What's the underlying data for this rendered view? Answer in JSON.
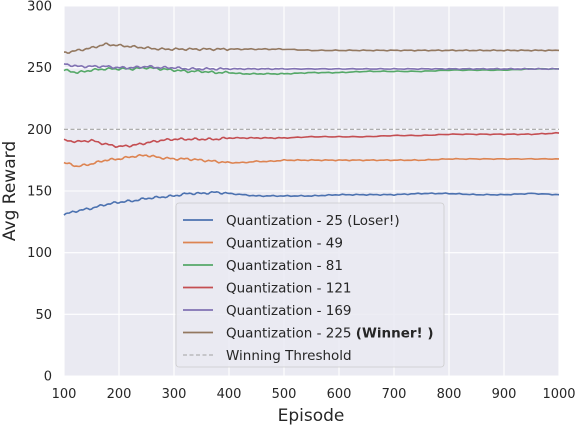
{
  "chart_data": {
    "type": "line",
    "title": "",
    "xlabel": "Episode",
    "ylabel": "Avg Reward",
    "xlim": [
      100,
      1000
    ],
    "ylim": [
      0,
      300
    ],
    "xticks": [
      "100",
      "200",
      "300",
      "400",
      "500",
      "600",
      "700",
      "800",
      "900",
      "1000"
    ],
    "yticks": [
      "0",
      "50",
      "100",
      "150",
      "200",
      "250",
      "300"
    ],
    "x": [
      100,
      125,
      150,
      175,
      200,
      225,
      250,
      275,
      300,
      325,
      350,
      375,
      400,
      425,
      450,
      475,
      500,
      550,
      600,
      650,
      700,
      750,
      800,
      850,
      900,
      950,
      1000
    ],
    "series": [
      {
        "name": "Quantization - 25",
        "note": "(Loser!)",
        "color": "#4c72b0",
        "values": [
          131,
          134,
          136,
          139,
          141,
          142,
          144,
          145,
          146,
          148,
          148,
          149,
          148,
          147,
          146,
          146,
          146,
          146,
          147,
          147,
          147,
          148,
          148,
          147,
          147,
          148,
          147
        ]
      },
      {
        "name": "Quantization - 49",
        "note": "",
        "color": "#dd8452",
        "values": [
          173,
          170,
          172,
          175,
          176,
          178,
          179,
          177,
          176,
          176,
          175,
          174,
          173,
          173,
          174,
          174,
          175,
          175,
          175,
          175,
          175,
          175,
          176,
          176,
          176,
          176,
          176
        ]
      },
      {
        "name": "Quantization - 81",
        "note": "",
        "color": "#55a868",
        "values": [
          248,
          246,
          248,
          249,
          249,
          249,
          250,
          249,
          248,
          247,
          247,
          246,
          246,
          245,
          245,
          245,
          245,
          246,
          246,
          247,
          247,
          247,
          248,
          248,
          248,
          249,
          249
        ]
      },
      {
        "name": "Quantization - 121",
        "note": "",
        "color": "#c44e52",
        "values": [
          191,
          190,
          191,
          188,
          186,
          187,
          189,
          191,
          192,
          192,
          192,
          192,
          193,
          193,
          193,
          193,
          193,
          194,
          194,
          194,
          195,
          195,
          196,
          196,
          196,
          196,
          197
        ]
      },
      {
        "name": "Quantization - 169",
        "note": "",
        "color": "#8172b3",
        "values": [
          253,
          251,
          251,
          251,
          250,
          250,
          251,
          250,
          250,
          249,
          249,
          249,
          249,
          249,
          249,
          249,
          249,
          249,
          249,
          249,
          249,
          249,
          249,
          249,
          249,
          249,
          249
        ]
      },
      {
        "name": "Quantization - 225",
        "note": "(Winner! )",
        "color": "#937860",
        "values": [
          262,
          264,
          266,
          269,
          268,
          267,
          266,
          265,
          265,
          265,
          265,
          265,
          265,
          265,
          265,
          265,
          265,
          264,
          264,
          264,
          264,
          264,
          264,
          264,
          264,
          264,
          264
        ]
      }
    ],
    "threshold": {
      "name": "Winning Threshold",
      "value": 200,
      "color": "#a3a3a3",
      "style": "dashed"
    },
    "legend_position": "lower-center",
    "grid": true,
    "background": "#eaeaf2"
  }
}
